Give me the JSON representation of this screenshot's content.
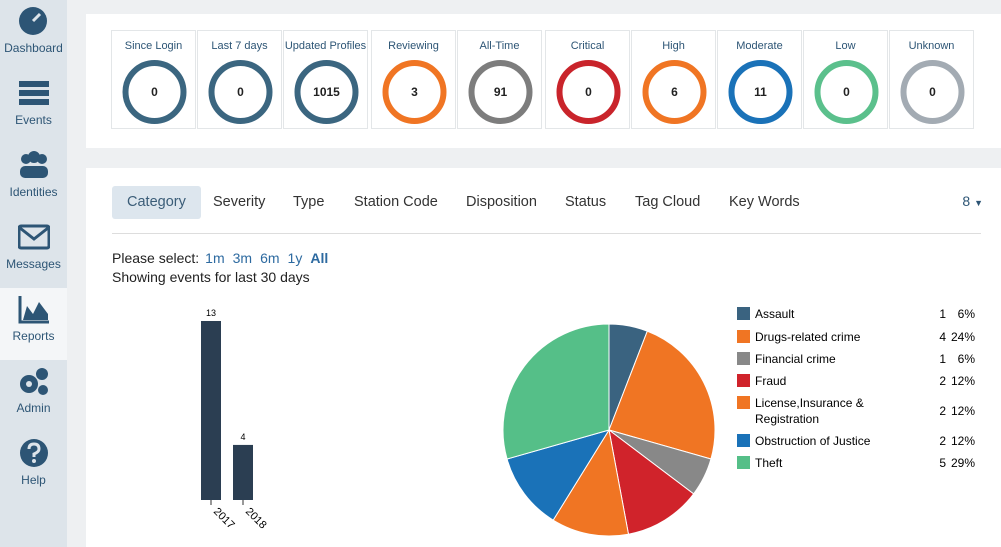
{
  "sidebar": [
    {
      "label": "Dashboard"
    },
    {
      "label": "Events"
    },
    {
      "label": "Identities"
    },
    {
      "label": "Messages"
    },
    {
      "label": "Reports"
    },
    {
      "label": "Admin"
    },
    {
      "label": "Help"
    }
  ],
  "stat_groups": [
    [
      {
        "label": "Since Login",
        "value": 0,
        "color": "#3b6680"
      },
      {
        "label": "Last 7 days",
        "value": 0,
        "color": "#3b6680"
      },
      {
        "label": "Updated Profiles",
        "value": 1015,
        "color": "#3b6680"
      }
    ],
    [
      {
        "label": "Reviewing",
        "value": 3,
        "color": "#f07523"
      },
      {
        "label": "All-Time",
        "value": 91,
        "color": "#7d7d7d"
      }
    ],
    [
      {
        "label": "Critical",
        "value": 0,
        "color": "#c9242b"
      },
      {
        "label": "High",
        "value": 6,
        "color": "#f07523"
      },
      {
        "label": "Moderate",
        "value": 11,
        "color": "#1a72b8"
      },
      {
        "label": "Low",
        "value": 0,
        "color": "#5bc08c"
      },
      {
        "label": "Unknown",
        "value": 0,
        "color": "#a3abb3"
      }
    ]
  ],
  "tabs": [
    "Category",
    "Severity",
    "Type",
    "Station Code",
    "Disposition",
    "Status",
    "Tag Cloud",
    "Key Words"
  ],
  "page_size": "8",
  "period": {
    "prompt": "Please select:",
    "options": [
      "1m",
      "3m",
      "6m",
      "1y",
      "All"
    ],
    "summary": "Showing events for last 30 days"
  },
  "bar_chart": {
    "categories": [
      "2017",
      "2018"
    ],
    "values": [
      13,
      4
    ],
    "color": "#2b3e52"
  },
  "pie_chart": {
    "slices": [
      {
        "name": "Assault",
        "count": 1,
        "percent": "6%",
        "color": "#3a6380"
      },
      {
        "name": "Drugs-related crime",
        "count": 4,
        "percent": "24%",
        "color": "#f07523"
      },
      {
        "name": "Financial crime",
        "count": 1,
        "percent": "6%",
        "color": "#888888"
      },
      {
        "name": "Fraud",
        "count": 2,
        "percent": "12%",
        "color": "#d0232b"
      },
      {
        "name": "License,Insurance & Registration",
        "count": 2,
        "percent": "12%",
        "color": "#f07523"
      },
      {
        "name": "Obstruction of Justice",
        "count": 2,
        "percent": "12%",
        "color": "#1a72b8"
      },
      {
        "name": "Theft",
        "count": 5,
        "percent": "29%",
        "color": "#55bf88"
      }
    ]
  }
}
